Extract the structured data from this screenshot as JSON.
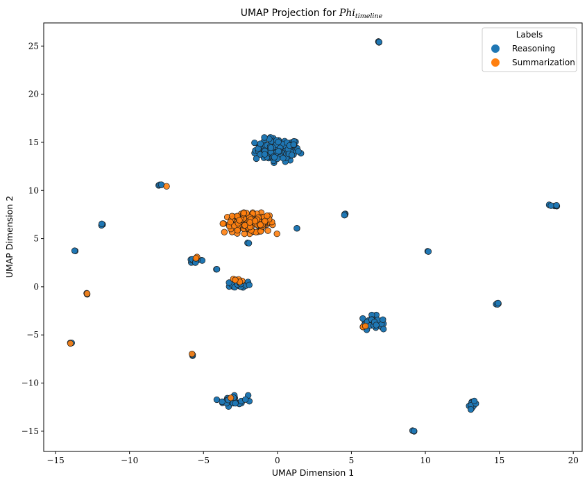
{
  "chart_data": {
    "type": "scatter",
    "title_prefix": "UMAP Projection for ",
    "title_math_base": "Phi",
    "title_math_sub": "timeline",
    "xlabel": "UMAP Dimension 1",
    "ylabel": "UMAP Dimension 2",
    "xlim": [
      -15.8,
      20.6
    ],
    "ylim": [
      -17.1,
      27.4
    ],
    "xticks": [
      {
        "value": -15,
        "label": "−15"
      },
      {
        "value": -10,
        "label": "−10"
      },
      {
        "value": -5,
        "label": "−5"
      },
      {
        "value": 0,
        "label": "0"
      },
      {
        "value": 5,
        "label": "5"
      },
      {
        "value": 10,
        "label": "10"
      },
      {
        "value": 15,
        "label": "15"
      },
      {
        "value": 20,
        "label": "20"
      }
    ],
    "yticks": [
      {
        "value": -15,
        "label": "−15"
      },
      {
        "value": -10,
        "label": "−10"
      },
      {
        "value": -5,
        "label": "−5"
      },
      {
        "value": 0,
        "label": "0"
      },
      {
        "value": 5,
        "label": "5"
      },
      {
        "value": 10,
        "label": "10"
      },
      {
        "value": 15,
        "label": "15"
      },
      {
        "value": 20,
        "label": "20"
      },
      {
        "value": 25,
        "label": "25"
      }
    ],
    "grid": false,
    "legend": {
      "title": "Labels",
      "placement": "top-right"
    },
    "series": [
      {
        "name": "Reasoning",
        "color": "#1f77b4",
        "clusters": [
          {
            "cx": 6.85,
            "cy": 25.4,
            "sx": 0.05,
            "sy": 0.05,
            "n": 5
          },
          {
            "cx": 0.0,
            "cy": 14.2,
            "sx": 0.75,
            "sy": 0.6,
            "n": 110
          },
          {
            "cx": -7.9,
            "cy": 10.6,
            "sx": 0.08,
            "sy": 0.05,
            "n": 4
          },
          {
            "cx": 18.7,
            "cy": 8.4,
            "sx": 0.15,
            "sy": 0.1,
            "n": 6
          },
          {
            "cx": 4.5,
            "cy": 7.5,
            "sx": 0.06,
            "sy": 0.05,
            "n": 4
          },
          {
            "cx": -11.9,
            "cy": 6.5,
            "sx": 0.08,
            "sy": 0.07,
            "n": 5
          },
          {
            "cx": 1.3,
            "cy": 6.1,
            "sx": 0.03,
            "sy": 0.03,
            "n": 2
          },
          {
            "cx": -2.0,
            "cy": 4.5,
            "sx": 0.05,
            "sy": 0.05,
            "n": 2
          },
          {
            "cx": -13.7,
            "cy": 3.7,
            "sx": 0.04,
            "sy": 0.04,
            "n": 2
          },
          {
            "cx": 10.2,
            "cy": 3.7,
            "sx": 0.04,
            "sy": 0.04,
            "n": 2
          },
          {
            "cx": -5.5,
            "cy": 2.7,
            "sx": 0.35,
            "sy": 0.15,
            "n": 14
          },
          {
            "cx": -4.1,
            "cy": 1.8,
            "sx": 0.03,
            "sy": 0.03,
            "n": 2
          },
          {
            "cx": -2.5,
            "cy": 0.2,
            "sx": 0.35,
            "sy": 0.2,
            "n": 18
          },
          {
            "cx": -12.9,
            "cy": -0.7,
            "sx": 0.04,
            "sy": 0.04,
            "n": 3
          },
          {
            "cx": 14.9,
            "cy": -1.75,
            "sx": 0.08,
            "sy": 0.06,
            "n": 5
          },
          {
            "cx": 6.4,
            "cy": -3.7,
            "sx": 0.35,
            "sy": 0.35,
            "n": 35
          },
          {
            "cx": -13.9,
            "cy": -5.8,
            "sx": 0.05,
            "sy": 0.04,
            "n": 2
          },
          {
            "cx": -5.8,
            "cy": -7.1,
            "sx": 0.04,
            "sy": 0.04,
            "n": 2
          },
          {
            "cx": -3.0,
            "cy": -11.8,
            "sx": 0.5,
            "sy": 0.3,
            "n": 30
          },
          {
            "cx": 13.2,
            "cy": -12.3,
            "sx": 0.12,
            "sy": 0.2,
            "n": 10
          },
          {
            "cx": 9.2,
            "cy": -15.0,
            "sx": 0.04,
            "sy": 0.04,
            "n": 3
          }
        ]
      },
      {
        "name": "Summarization",
        "color": "#ff7f0e",
        "clusters": [
          {
            "cx": -1.9,
            "cy": 6.6,
            "sx": 0.85,
            "sy": 0.5,
            "n": 150
          },
          {
            "cx": -7.5,
            "cy": 10.4,
            "sx": 0.03,
            "sy": 0.03,
            "n": 1
          },
          {
            "cx": -5.4,
            "cy": 3.0,
            "sx": 0.05,
            "sy": 0.05,
            "n": 2
          },
          {
            "cx": -2.6,
            "cy": 0.75,
            "sx": 0.25,
            "sy": 0.15,
            "n": 6
          },
          {
            "cx": -12.9,
            "cy": -0.7,
            "sx": 0.03,
            "sy": 0.03,
            "n": 1
          },
          {
            "cx": 5.8,
            "cy": -4.15,
            "sx": 0.1,
            "sy": 0.05,
            "n": 3
          },
          {
            "cx": -14.0,
            "cy": -5.9,
            "sx": 0.03,
            "sy": 0.03,
            "n": 1
          },
          {
            "cx": -5.75,
            "cy": -7.0,
            "sx": 0.03,
            "sy": 0.03,
            "n": 1
          },
          {
            "cx": -3.2,
            "cy": -11.6,
            "sx": 0.05,
            "sy": 0.05,
            "n": 1
          }
        ]
      }
    ]
  }
}
